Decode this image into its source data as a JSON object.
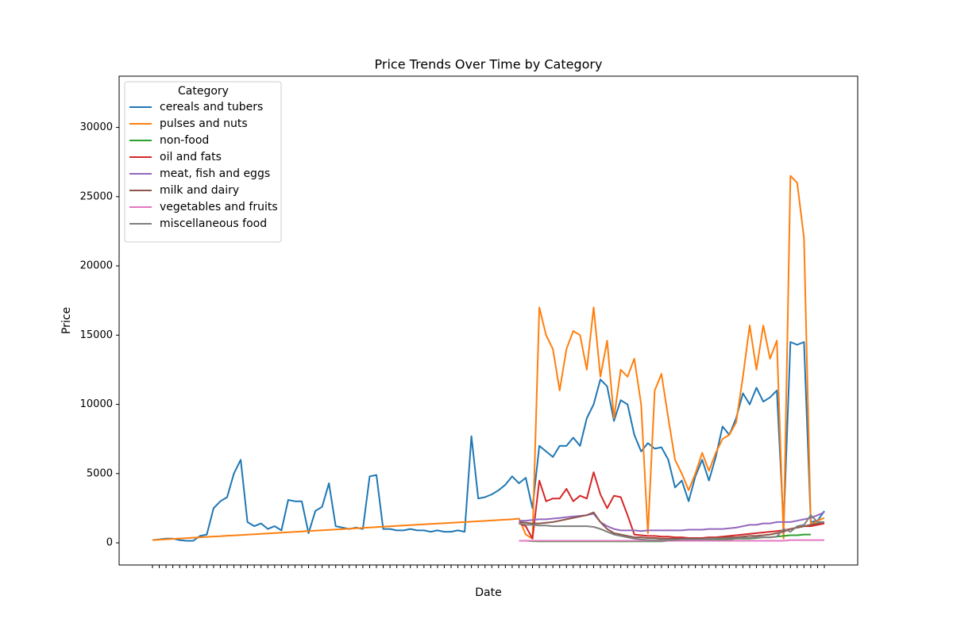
{
  "chart_data": {
    "type": "line",
    "title": "Price Trends Over Time by Category",
    "x_label": "Date",
    "y_label": "Price",
    "legend_title": "Category",
    "legend": "upper left",
    "grid": false,
    "ylim": [
      -1600,
      33700
    ],
    "yticks": [
      0,
      5000,
      10000,
      15000,
      20000,
      25000,
      30000
    ],
    "categories": [
      null,
      null,
      null,
      null,
      null,
      null,
      null,
      null,
      null,
      null,
      null,
      null,
      null,
      null,
      null,
      null,
      null,
      null,
      null,
      null,
      null,
      null,
      null,
      null,
      null,
      null,
      null,
      null,
      null,
      null,
      null,
      null,
      null,
      null,
      null,
      null,
      null,
      null,
      null,
      null,
      null,
      null,
      null,
      null,
      null,
      null,
      null,
      null,
      null,
      null,
      null,
      null,
      null,
      null,
      null,
      null,
      null,
      null,
      null,
      null,
      null,
      null,
      null,
      null,
      null,
      null,
      null,
      null,
      null,
      null,
      null,
      null,
      null,
      null,
      null,
      null,
      null,
      null,
      null,
      null,
      null,
      null,
      null,
      null,
      null,
      null,
      null,
      null,
      null,
      null,
      null,
      null,
      null,
      null,
      null,
      null,
      null,
      null,
      null,
      null
    ],
    "series": [
      {
        "name": "cereals and tubers",
        "color": "#1f77b4",
        "values": [
          200,
          250,
          300,
          300,
          200,
          150,
          150,
          500,
          600,
          2500,
          3000,
          3300,
          5000,
          6000,
          1500,
          1200,
          1400,
          1000,
          1200,
          900,
          3100,
          3000,
          3000,
          700,
          2300,
          2600,
          4300,
          1200,
          1100,
          1000,
          1100,
          1000,
          4800,
          4900,
          1000,
          1000,
          900,
          900,
          1000,
          900,
          900,
          800,
          900,
          800,
          800,
          900,
          800,
          7700,
          3200,
          3300,
          3500,
          3800,
          4200,
          4800,
          4300,
          4700,
          2500,
          7000,
          6600,
          6200,
          7000,
          7000,
          7600,
          7000,
          9000,
          10000,
          11800,
          11300,
          8800,
          10300,
          10000,
          7800,
          6600,
          7200,
          6800,
          6900,
          6000,
          4000,
          4500,
          3000,
          4800,
          6000,
          4500,
          6200,
          8400,
          7800,
          9000,
          10800,
          10000,
          11200,
          10200,
          10500,
          11000,
          1200,
          14500,
          14300,
          14500,
          1500,
          1600,
          2300
        ]
      },
      {
        "name": "pulses and nuts",
        "color": "#ff7f0e",
        "values": [
          200,
          228,
          257,
          285,
          313,
          342,
          370,
          398,
          427,
          455,
          483,
          512,
          540,
          568,
          597,
          625,
          653,
          682,
          710,
          738,
          766,
          795,
          823,
          851,
          880,
          908,
          936,
          965,
          993,
          1021,
          1049,
          1078,
          1106,
          1134,
          1163,
          1191,
          1219,
          1248,
          1276,
          1304,
          1332,
          1361,
          1389,
          1417,
          1446,
          1474,
          1502,
          1531,
          1559,
          1587,
          1615,
          1644,
          1672,
          1700,
          1750,
          600,
          300,
          17000,
          15000,
          14000,
          11000,
          14000,
          15300,
          15000,
          12500,
          17000,
          12000,
          14600,
          9000,
          12500,
          12000,
          13300,
          10000,
          700,
          11000,
          12200,
          9000,
          6000,
          5000,
          3800,
          5000,
          6500,
          5200,
          6500,
          7500,
          7800,
          8700,
          12000,
          15700,
          12500,
          15700,
          13300,
          14600,
          300,
          26500,
          26000,
          22000,
          1300,
          1600,
          1800
        ]
      },
      {
        "name": "non-food",
        "color": "#2ca02c",
        "values": [
          null,
          null,
          null,
          null,
          null,
          null,
          null,
          null,
          null,
          null,
          null,
          null,
          null,
          null,
          null,
          null,
          null,
          null,
          null,
          null,
          null,
          null,
          null,
          null,
          null,
          null,
          null,
          null,
          null,
          null,
          null,
          null,
          null,
          null,
          null,
          null,
          null,
          null,
          null,
          null,
          null,
          null,
          null,
          null,
          null,
          null,
          null,
          null,
          null,
          null,
          null,
          null,
          null,
          null,
          150,
          150,
          120,
          100,
          100,
          100,
          100,
          100,
          100,
          100,
          100,
          100,
          100,
          100,
          100,
          100,
          100,
          100,
          100,
          100,
          100,
          100,
          150,
          150,
          150,
          150,
          200,
          200,
          200,
          200,
          250,
          250,
          300,
          300,
          300,
          350,
          400,
          400,
          450,
          500,
          550,
          550,
          600,
          600,
          null,
          null
        ]
      },
      {
        "name": "oil and fats",
        "color": "#d62728",
        "values": [
          null,
          null,
          null,
          null,
          null,
          null,
          null,
          null,
          null,
          null,
          null,
          null,
          null,
          null,
          null,
          null,
          null,
          null,
          null,
          null,
          null,
          null,
          null,
          null,
          null,
          null,
          null,
          null,
          null,
          null,
          null,
          null,
          null,
          null,
          null,
          null,
          null,
          null,
          null,
          null,
          null,
          null,
          null,
          null,
          null,
          null,
          null,
          null,
          null,
          null,
          null,
          null,
          null,
          null,
          1400,
          1200,
          300,
          4500,
          3000,
          3200,
          3200,
          3900,
          3000,
          3400,
          3200,
          5100,
          3500,
          2500,
          3400,
          3300,
          2000,
          600,
          550,
          500,
          500,
          450,
          450,
          400,
          400,
          350,
          350,
          350,
          400,
          400,
          450,
          500,
          550,
          600,
          650,
          700,
          750,
          800,
          850,
          900,
          1000,
          1100,
          1200,
          1200,
          1300,
          1400
        ]
      },
      {
        "name": "meat, fish and eggs",
        "color": "#9467bd",
        "values": [
          null,
          null,
          null,
          null,
          null,
          null,
          null,
          null,
          null,
          null,
          null,
          null,
          null,
          null,
          null,
          null,
          null,
          null,
          null,
          null,
          null,
          null,
          null,
          null,
          null,
          null,
          null,
          null,
          null,
          null,
          null,
          null,
          null,
          null,
          null,
          null,
          null,
          null,
          null,
          null,
          null,
          null,
          null,
          null,
          null,
          null,
          null,
          null,
          null,
          null,
          null,
          null,
          null,
          null,
          1600,
          1600,
          1650,
          1700,
          1700,
          1750,
          1800,
          1850,
          1900,
          1950,
          2000,
          2100,
          1500,
          1200,
          1000,
          900,
          900,
          900,
          850,
          900,
          900,
          900,
          900,
          900,
          900,
          950,
          950,
          950,
          1000,
          1000,
          1000,
          1050,
          1100,
          1200,
          1300,
          1300,
          1400,
          1400,
          1500,
          1500,
          1500,
          1600,
          1700,
          1800,
          2000,
          2200
        ]
      },
      {
        "name": "milk and dairy",
        "color": "#8c564b",
        "values": [
          null,
          null,
          null,
          null,
          null,
          null,
          null,
          null,
          null,
          null,
          null,
          null,
          null,
          null,
          null,
          null,
          null,
          null,
          null,
          null,
          null,
          null,
          null,
          null,
          null,
          null,
          null,
          null,
          null,
          null,
          null,
          null,
          null,
          null,
          null,
          null,
          null,
          null,
          null,
          null,
          null,
          null,
          null,
          null,
          null,
          null,
          null,
          null,
          null,
          null,
          null,
          null,
          null,
          null,
          1500,
          1450,
          1400,
          1400,
          1450,
          1500,
          1600,
          1700,
          1800,
          1900,
          2000,
          2200,
          1500,
          1000,
          700,
          600,
          500,
          400,
          400,
          350,
          350,
          300,
          300,
          300,
          300,
          300,
          300,
          300,
          300,
          350,
          350,
          400,
          400,
          450,
          500,
          500,
          550,
          600,
          700,
          800,
          1000,
          1100,
          1200,
          1300,
          1400,
          1500
        ]
      },
      {
        "name": "vegetables and fruits",
        "color": "#e377c2",
        "values": [
          null,
          null,
          null,
          null,
          null,
          null,
          null,
          null,
          null,
          null,
          null,
          null,
          null,
          null,
          null,
          null,
          null,
          null,
          null,
          null,
          null,
          null,
          null,
          null,
          null,
          null,
          null,
          null,
          null,
          null,
          null,
          null,
          null,
          null,
          null,
          null,
          null,
          null,
          null,
          null,
          null,
          null,
          null,
          null,
          null,
          null,
          null,
          null,
          null,
          null,
          null,
          null,
          null,
          null,
          150,
          150,
          150,
          150,
          150,
          150,
          150,
          150,
          150,
          150,
          150,
          150,
          150,
          150,
          150,
          150,
          150,
          150,
          150,
          150,
          150,
          150,
          150,
          150,
          150,
          150,
          150,
          150,
          150,
          150,
          150,
          150,
          150,
          150,
          150,
          150,
          150,
          150,
          150,
          150,
          200,
          200,
          200,
          200,
          200,
          200
        ]
      },
      {
        "name": "miscellaneous food",
        "color": "#7f7f7f",
        "values": [
          null,
          null,
          null,
          null,
          null,
          null,
          null,
          null,
          null,
          null,
          null,
          null,
          null,
          null,
          null,
          null,
          null,
          null,
          null,
          null,
          null,
          null,
          null,
          null,
          null,
          null,
          null,
          null,
          null,
          null,
          null,
          null,
          null,
          null,
          null,
          null,
          null,
          null,
          null,
          null,
          null,
          null,
          null,
          null,
          null,
          null,
          null,
          null,
          null,
          null,
          null,
          null,
          null,
          null,
          1400,
          1300,
          1300,
          1250,
          1250,
          1200,
          1200,
          1200,
          1200,
          1200,
          1200,
          1150,
          1000,
          800,
          600,
          500,
          400,
          300,
          250,
          200,
          200,
          200,
          200,
          200,
          250,
          250,
          250,
          250,
          300,
          300,
          300,
          300,
          300,
          350,
          350,
          400,
          400,
          400,
          450,
          1000,
          800,
          1200,
          1300,
          2000,
          1500,
          1500
        ]
      }
    ]
  }
}
